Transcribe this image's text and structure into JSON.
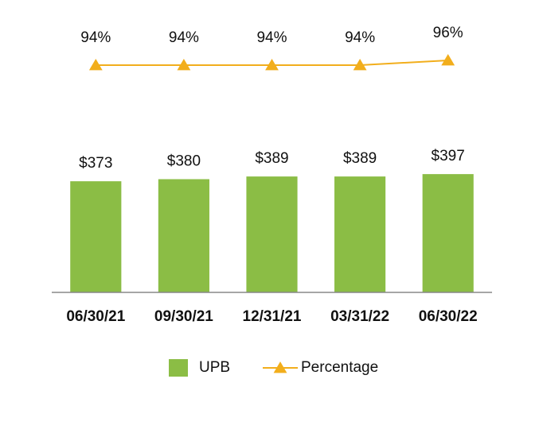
{
  "chart_data": {
    "type": "combo",
    "categories": [
      "06/30/21",
      "09/30/21",
      "12/31/21",
      "03/31/22",
      "06/30/22"
    ],
    "series": [
      {
        "name": "UPB",
        "type": "bar",
        "color": "#8bbd45",
        "values": [
          373,
          380,
          389,
          389,
          397
        ],
        "value_labels": [
          "$373",
          "$380",
          "$389",
          "$389",
          "$397"
        ]
      },
      {
        "name": "Percentage",
        "type": "line",
        "axis": "y2",
        "color": "#f2ae1c",
        "values": [
          94,
          94,
          94,
          94,
          96
        ],
        "value_labels": [
          "94%",
          "94%",
          "94%",
          "94%",
          "96%"
        ]
      }
    ],
    "ylim": [
      0,
      600
    ],
    "y2lim": [
      80,
      100
    ],
    "grid": false,
    "legend": "bottom"
  }
}
